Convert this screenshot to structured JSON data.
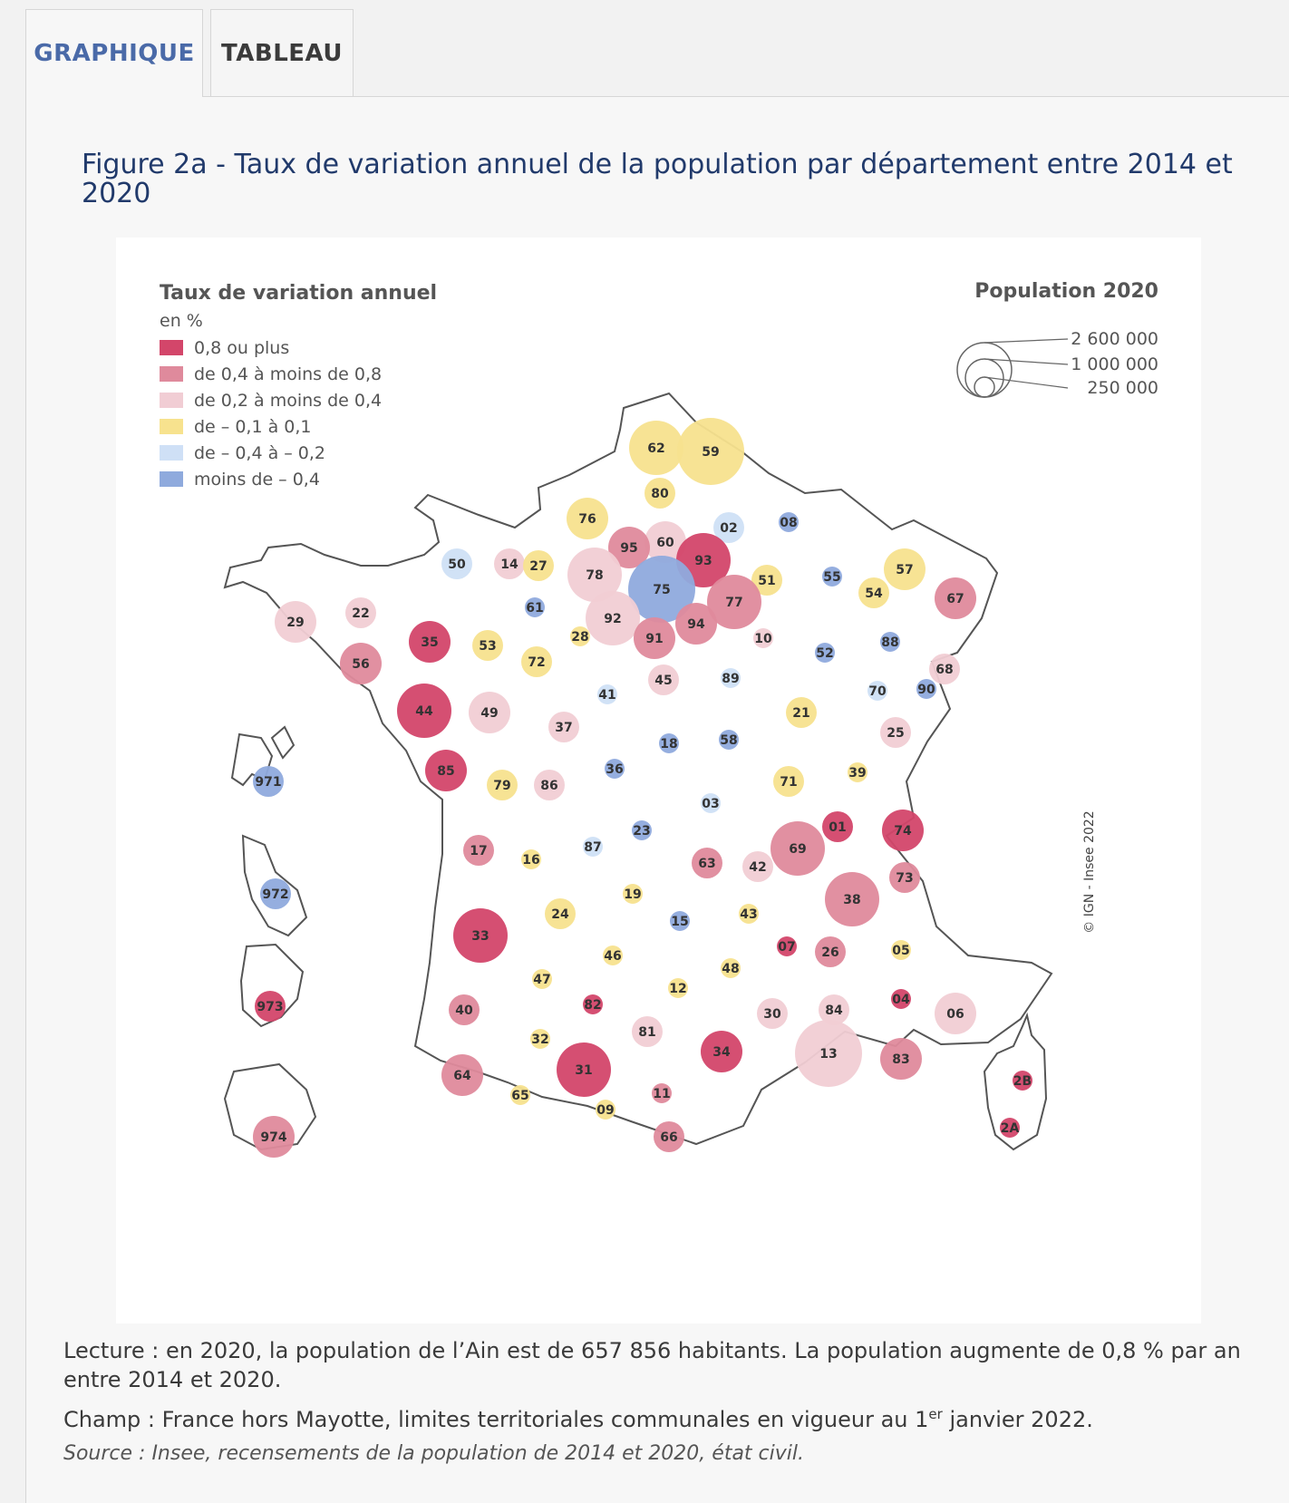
{
  "tabs": [
    {
      "label": "GRAPHIQUE",
      "active": true
    },
    {
      "label": "TABLEAU",
      "active": false
    }
  ],
  "figure": {
    "title": "Figure 2a - Taux de variation annuel de la population par département entre 2014 et 2020"
  },
  "legend": {
    "title": "Taux de variation annuel",
    "unit": "en %",
    "classes": [
      {
        "id": "c1",
        "label": "0,8 ou plus",
        "color": "#d3466a"
      },
      {
        "id": "c2",
        "label": "de 0,4 à moins de 0,8",
        "color": "#df8a9c"
      },
      {
        "id": "c3",
        "label": "de 0,2 à moins de 0,4",
        "color": "#f1cdd4"
      },
      {
        "id": "c4",
        "label": "de – 0,1 à 0,1",
        "color": "#f7e28e"
      },
      {
        "id": "c5",
        "label": "de – 0,4 à  – 0,2",
        "color": "#cfe0f6"
      },
      {
        "id": "c6",
        "label": "moins de – 0,4",
        "color": "#8faadd"
      }
    ],
    "size_title": "Population 2020",
    "size_classes": [
      {
        "label": "2 600 000",
        "value": 2600000
      },
      {
        "label": "1 000 000",
        "value": 1000000
      },
      {
        "label": "250 000",
        "value": 250000
      }
    ]
  },
  "copyright": "© IGN - Insee 2022",
  "departments": [
    {
      "code": "62",
      "class": "c4",
      "size": "L"
    },
    {
      "code": "59",
      "class": "c4",
      "size": "XL"
    },
    {
      "code": "80",
      "class": "c4",
      "size": "S"
    },
    {
      "code": "76",
      "class": "c4",
      "size": "M"
    },
    {
      "code": "02",
      "class": "c5",
      "size": "S"
    },
    {
      "code": "08",
      "class": "c6",
      "size": "XS"
    },
    {
      "code": "60",
      "class": "c3",
      "size": "M"
    },
    {
      "code": "95",
      "class": "c2",
      "size": "M"
    },
    {
      "code": "93",
      "class": "c1",
      "size": "L"
    },
    {
      "code": "50",
      "class": "c5",
      "size": "S"
    },
    {
      "code": "14",
      "class": "c3",
      "size": "S"
    },
    {
      "code": "27",
      "class": "c4",
      "size": "S"
    },
    {
      "code": "78",
      "class": "c3",
      "size": "L"
    },
    {
      "code": "75",
      "class": "c6",
      "size": "XL"
    },
    {
      "code": "51",
      "class": "c4",
      "size": "S"
    },
    {
      "code": "55",
      "class": "c6",
      "size": "XS"
    },
    {
      "code": "57",
      "class": "c4",
      "size": "M"
    },
    {
      "code": "54",
      "class": "c4",
      "size": "S"
    },
    {
      "code": "67",
      "class": "c2",
      "size": "M"
    },
    {
      "code": "29",
      "class": "c3",
      "size": "M"
    },
    {
      "code": "22",
      "class": "c3",
      "size": "S"
    },
    {
      "code": "61",
      "class": "c6",
      "size": "XS"
    },
    {
      "code": "92",
      "class": "c3",
      "size": "L"
    },
    {
      "code": "77",
      "class": "c2",
      "size": "L"
    },
    {
      "code": "94",
      "class": "c2",
      "size": "M"
    },
    {
      "code": "91",
      "class": "c2",
      "size": "M"
    },
    {
      "code": "35",
      "class": "c1",
      "size": "M"
    },
    {
      "code": "53",
      "class": "c4",
      "size": "S"
    },
    {
      "code": "28",
      "class": "c4",
      "size": "XS"
    },
    {
      "code": "10",
      "class": "c3",
      "size": "XS"
    },
    {
      "code": "52",
      "class": "c6",
      "size": "XS"
    },
    {
      "code": "88",
      "class": "c6",
      "size": "XS"
    },
    {
      "code": "56",
      "class": "c2",
      "size": "M"
    },
    {
      "code": "72",
      "class": "c4",
      "size": "S"
    },
    {
      "code": "45",
      "class": "c3",
      "size": "S"
    },
    {
      "code": "89",
      "class": "c5",
      "size": "XS"
    },
    {
      "code": "68",
      "class": "c3",
      "size": "S"
    },
    {
      "code": "70",
      "class": "c5",
      "size": "XS"
    },
    {
      "code": "90",
      "class": "c6",
      "size": "XS"
    },
    {
      "code": "44",
      "class": "c1",
      "size": "L"
    },
    {
      "code": "49",
      "class": "c3",
      "size": "M"
    },
    {
      "code": "41",
      "class": "c5",
      "size": "XS"
    },
    {
      "code": "37",
      "class": "c3",
      "size": "S"
    },
    {
      "code": "21",
      "class": "c4",
      "size": "S"
    },
    {
      "code": "25",
      "class": "c3",
      "size": "S"
    },
    {
      "code": "18",
      "class": "c6",
      "size": "XS"
    },
    {
      "code": "58",
      "class": "c6",
      "size": "XS"
    },
    {
      "code": "85",
      "class": "c1",
      "size": "M"
    },
    {
      "code": "79",
      "class": "c4",
      "size": "S"
    },
    {
      "code": "86",
      "class": "c3",
      "size": "S"
    },
    {
      "code": "36",
      "class": "c6",
      "size": "XS"
    },
    {
      "code": "71",
      "class": "c4",
      "size": "S"
    },
    {
      "code": "39",
      "class": "c4",
      "size": "XS"
    },
    {
      "code": "03",
      "class": "c5",
      "size": "XS"
    },
    {
      "code": "01",
      "class": "c1",
      "size": "S"
    },
    {
      "code": "74",
      "class": "c1",
      "size": "M"
    },
    {
      "code": "23",
      "class": "c6",
      "size": "XS"
    },
    {
      "code": "17",
      "class": "c2",
      "size": "S"
    },
    {
      "code": "16",
      "class": "c4",
      "size": "XS"
    },
    {
      "code": "87",
      "class": "c5",
      "size": "XS"
    },
    {
      "code": "63",
      "class": "c2",
      "size": "S"
    },
    {
      "code": "42",
      "class": "c3",
      "size": "S"
    },
    {
      "code": "69",
      "class": "c2",
      "size": "L"
    },
    {
      "code": "73",
      "class": "c2",
      "size": "S"
    },
    {
      "code": "38",
      "class": "c2",
      "size": "L"
    },
    {
      "code": "19",
      "class": "c4",
      "size": "XS"
    },
    {
      "code": "24",
      "class": "c4",
      "size": "S"
    },
    {
      "code": "15",
      "class": "c6",
      "size": "XS"
    },
    {
      "code": "43",
      "class": "c4",
      "size": "XS"
    },
    {
      "code": "33",
      "class": "c1",
      "size": "L"
    },
    {
      "code": "07",
      "class": "c1",
      "size": "XS"
    },
    {
      "code": "26",
      "class": "c2",
      "size": "S"
    },
    {
      "code": "05",
      "class": "c4",
      "size": "XS"
    },
    {
      "code": "46",
      "class": "c4",
      "size": "XS"
    },
    {
      "code": "48",
      "class": "c4",
      "size": "XS"
    },
    {
      "code": "47",
      "class": "c4",
      "size": "XS"
    },
    {
      "code": "12",
      "class": "c4",
      "size": "XS"
    },
    {
      "code": "82",
      "class": "c1",
      "size": "XS"
    },
    {
      "code": "40",
      "class": "c2",
      "size": "S"
    },
    {
      "code": "30",
      "class": "c3",
      "size": "S"
    },
    {
      "code": "84",
      "class": "c3",
      "size": "S"
    },
    {
      "code": "04",
      "class": "c1",
      "size": "XS"
    },
    {
      "code": "06",
      "class": "c3",
      "size": "M"
    },
    {
      "code": "32",
      "class": "c4",
      "size": "XS"
    },
    {
      "code": "81",
      "class": "c3",
      "size": "S"
    },
    {
      "code": "34",
      "class": "c1",
      "size": "M"
    },
    {
      "code": "13",
      "class": "c3",
      "size": "XL"
    },
    {
      "code": "83",
      "class": "c2",
      "size": "M"
    },
    {
      "code": "31",
      "class": "c1",
      "size": "L"
    },
    {
      "code": "64",
      "class": "c2",
      "size": "M"
    },
    {
      "code": "65",
      "class": "c4",
      "size": "XS"
    },
    {
      "code": "09",
      "class": "c4",
      "size": "XS"
    },
    {
      "code": "11",
      "class": "c2",
      "size": "XS"
    },
    {
      "code": "66",
      "class": "c2",
      "size": "S"
    },
    {
      "code": "2B",
      "class": "c1",
      "size": "XS"
    },
    {
      "code": "2A",
      "class": "c1",
      "size": "XS"
    },
    {
      "code": "971",
      "class": "c6",
      "size": "S"
    },
    {
      "code": "972",
      "class": "c6",
      "size": "S"
    },
    {
      "code": "973",
      "class": "c1",
      "size": "S"
    },
    {
      "code": "974",
      "class": "c2",
      "size": "M"
    }
  ],
  "notes": {
    "lecture": "Lecture : en 2020, la population de l’Ain est de 657 856 habitants. La population augmente de 0,8 % par an entre 2014 et 2020.",
    "champ_before": "Champ : France hors Mayotte, limites territoriales communales en vigueur au 1",
    "champ_sup": "er",
    "champ_after": " janvier 2022.",
    "source": "Source : Insee, recensements de la population de 2014 et 2020, état civil."
  }
}
